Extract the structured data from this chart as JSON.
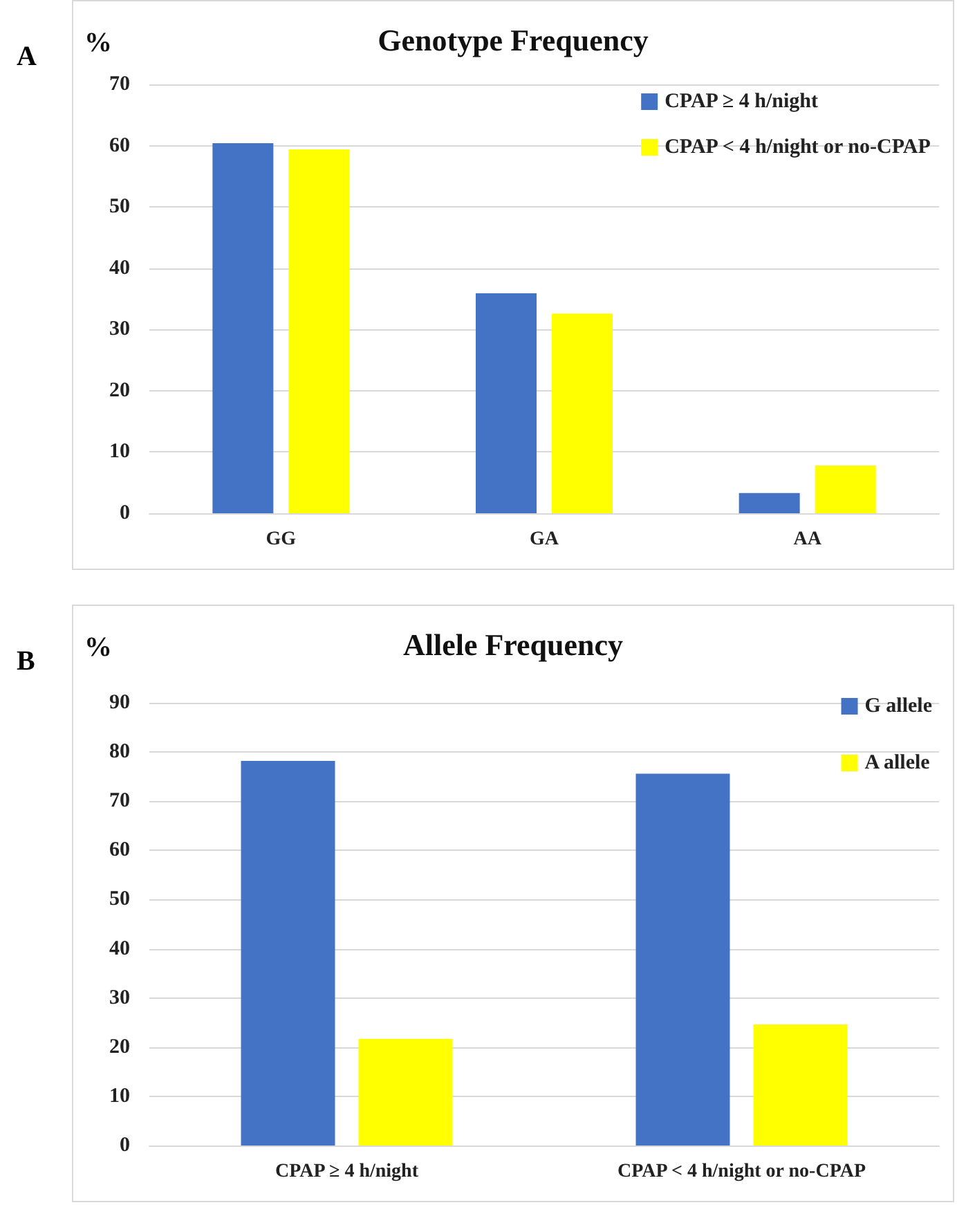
{
  "chart_data": [
    {
      "type": "bar",
      "title": "Genotype Frequency",
      "ylabel": "%",
      "annotations": [
        "A"
      ],
      "categories": [
        "GG",
        "GA",
        "AA"
      ],
      "series": [
        {
          "name": "CPAP ≥ 4 h/night",
          "color": "#4472c4",
          "values": [
            60.4,
            35.9,
            3.3
          ]
        },
        {
          "name": "CPAP < 4 h/night or no-CPAP",
          "color": "#ffff00",
          "values": [
            59.4,
            32.6,
            7.8
          ]
        }
      ],
      "ylim": [
        0,
        70
      ],
      "yticks": [
        0,
        10,
        20,
        30,
        40,
        50,
        60,
        70
      ],
      "grid": "y",
      "legend": "top right"
    },
    {
      "type": "bar",
      "title": "Allele Frequency",
      "ylabel": "%",
      "annotations": [
        "B"
      ],
      "categories": [
        "CPAP ≥ 4 h/night",
        "CPAP < 4 h/night or no-CPAP"
      ],
      "series": [
        {
          "name": "G allele",
          "color": "#4472c4",
          "values": [
            78.2,
            75.6
          ]
        },
        {
          "name": "A allele",
          "color": "#ffff00",
          "values": [
            21.7,
            24.6
          ]
        }
      ],
      "ylim": [
        0,
        90
      ],
      "yticks": [
        0,
        10,
        20,
        30,
        40,
        50,
        60,
        70,
        80,
        90
      ],
      "grid": "y",
      "legend": "top right"
    }
  ]
}
